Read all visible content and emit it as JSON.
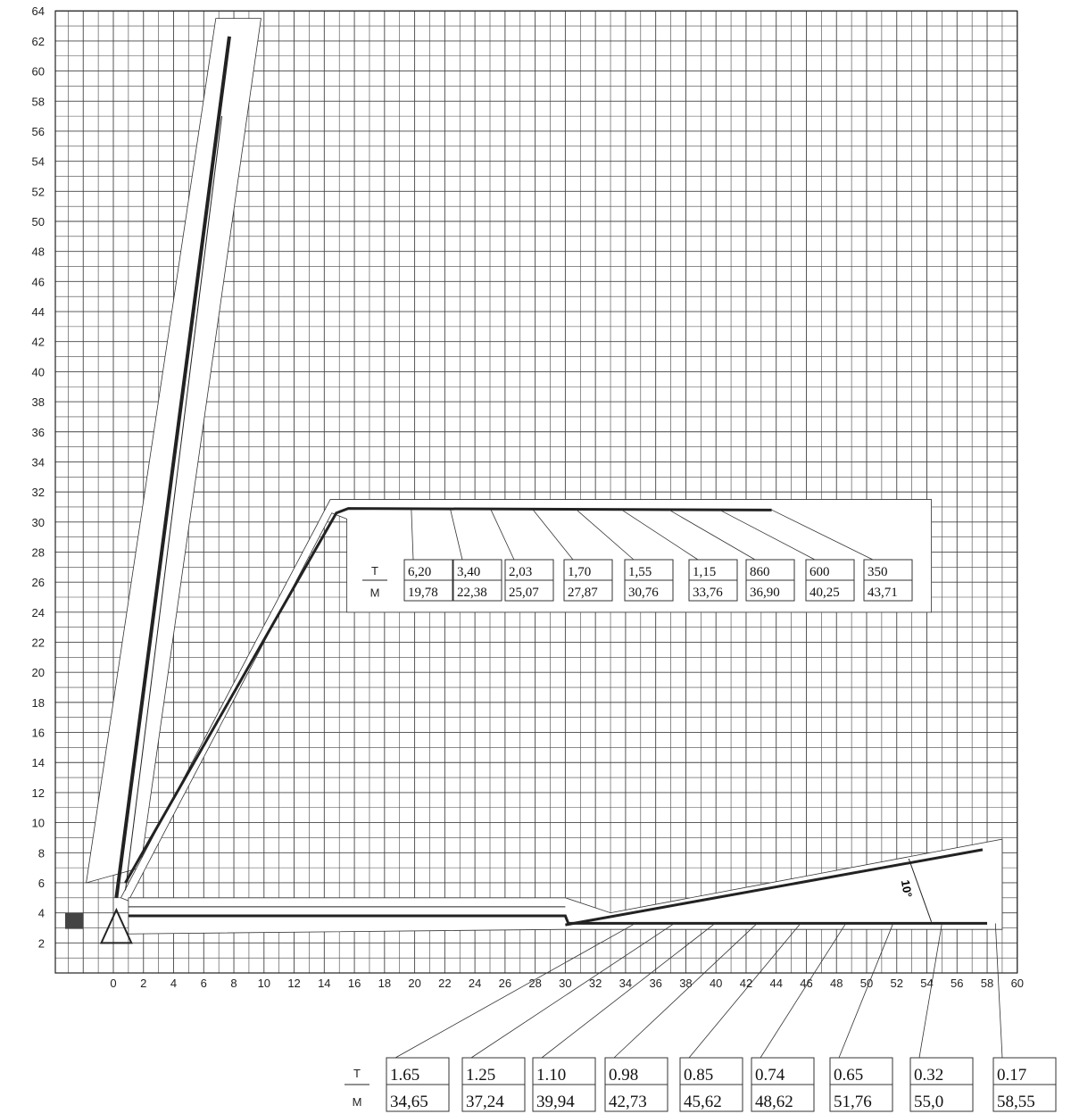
{
  "chart_data": {
    "type": "line",
    "title": "",
    "xlabel": "",
    "ylabel": "",
    "xlim": [
      -4,
      60
    ],
    "ylim": [
      0,
      64
    ],
    "x_ticks": [
      0,
      2,
      4,
      6,
      8,
      10,
      12,
      14,
      16,
      18,
      20,
      22,
      24,
      26,
      28,
      30,
      32,
      34,
      36,
      38,
      40,
      42,
      44,
      46,
      48,
      50,
      52,
      54,
      56,
      58,
      60
    ],
    "y_ticks": [
      2,
      4,
      6,
      8,
      10,
      12,
      14,
      16,
      18,
      20,
      22,
      24,
      26,
      28,
      30,
      32,
      34,
      36,
      38,
      40,
      42,
      44,
      46,
      48,
      50,
      52,
      54,
      56,
      58,
      60,
      62,
      64
    ],
    "grid": true,
    "angle_label": "10°",
    "upper_load_table": {
      "row_labels": [
        "T",
        "M"
      ],
      "loads": [
        "6,20",
        "3,40",
        "2,03",
        "1,70",
        "1,55",
        "1,15",
        "860",
        "600",
        "350"
      ],
      "reach": [
        "19,78",
        "22,38",
        "25,07",
        "27,87",
        "30,76",
        "33,76",
        "36,90",
        "40,25",
        "43,71"
      ]
    },
    "lower_load_table": {
      "row_labels": [
        "T",
        "M"
      ],
      "loads": [
        "1.65",
        "1.25",
        "1.10",
        "0.98",
        "0.85",
        "0.74",
        "0.65",
        "0.32",
        "0.17"
      ],
      "reach": [
        "34,65",
        "37,24",
        "39,94",
        "42,73",
        "45,62",
        "48,62",
        "51,76",
        "55,0",
        "58,55"
      ]
    },
    "colors": {
      "line": "#222222",
      "grid": "#444444",
      "background": "#ffffff"
    }
  }
}
